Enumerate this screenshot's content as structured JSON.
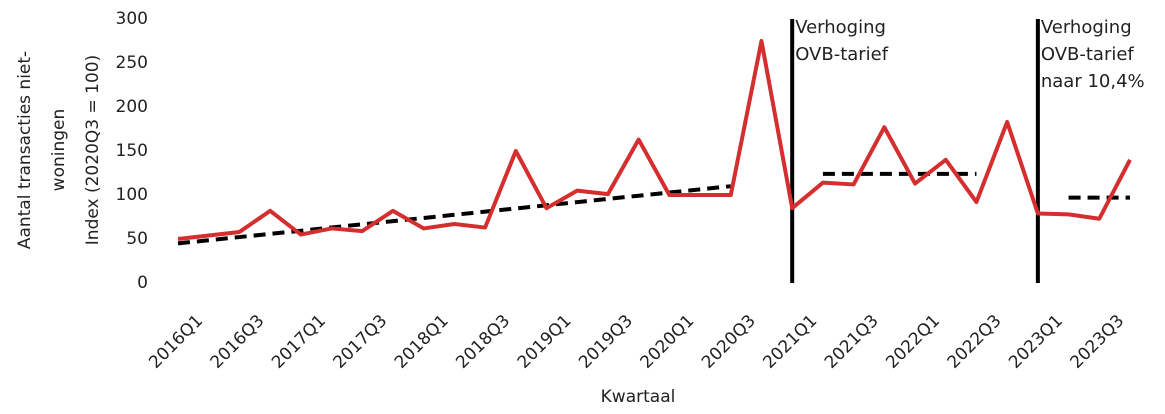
{
  "chart_data": {
    "type": "line",
    "y_label": [
      "Aantal transacties niet-",
      "woningen",
      "Index (2020Q3 = 100)"
    ],
    "x_label": "Kwartaal",
    "categories": [
      "2016Q1",
      "2016Q2",
      "2016Q3",
      "2016Q4",
      "2017Q1",
      "2017Q2",
      "2017Q3",
      "2017Q4",
      "2018Q1",
      "2018Q2",
      "2018Q3",
      "2018Q4",
      "2019Q1",
      "2019Q2",
      "2019Q3",
      "2019Q4",
      "2020Q1",
      "2020Q2",
      "2020Q3",
      "2020Q4",
      "2021Q1",
      "2021Q2",
      "2021Q3",
      "2021Q4",
      "2022Q1",
      "2022Q2",
      "2022Q3",
      "2022Q4",
      "2023Q1",
      "2023Q2",
      "2023Q3",
      "2023Q4"
    ],
    "category_labels_every": 2,
    "series": [
      {
        "color": "#d42e2e",
        "dashed": false,
        "values": [
          50,
          54,
          58,
          82,
          55,
          62,
          59,
          82,
          62,
          67,
          63,
          150,
          85,
          105,
          101,
          163,
          100,
          100,
          100,
          275,
          85,
          114,
          112,
          177,
          113,
          140,
          92,
          183,
          79,
          78,
          73,
          140
        ]
      },
      {
        "color": "#000000",
        "dashed": true,
        "values": [
          45,
          48.6,
          52.2,
          55.8,
          59.4,
          63.1,
          66.7,
          70.3,
          73.9,
          77.5,
          81.1,
          84.7,
          88.3,
          91.9,
          95.6,
          99.2,
          102.8,
          106.4,
          110,
          null,
          null,
          124,
          124,
          124,
          124,
          124,
          124,
          null,
          null,
          97,
          97,
          97
        ]
      }
    ],
    "annotations": [
      {
        "category": 20,
        "lines": [
          "Verhoging",
          "OVB-tarief"
        ]
      },
      {
        "category": 28,
        "lines": [
          "Verhoging",
          "OVB-tarief",
          "naar 10,4%"
        ]
      }
    ],
    "ylim": [
      0,
      300
    ],
    "yticks": [
      0,
      50,
      100,
      150,
      200,
      250,
      300
    ],
    "grid": false
  }
}
